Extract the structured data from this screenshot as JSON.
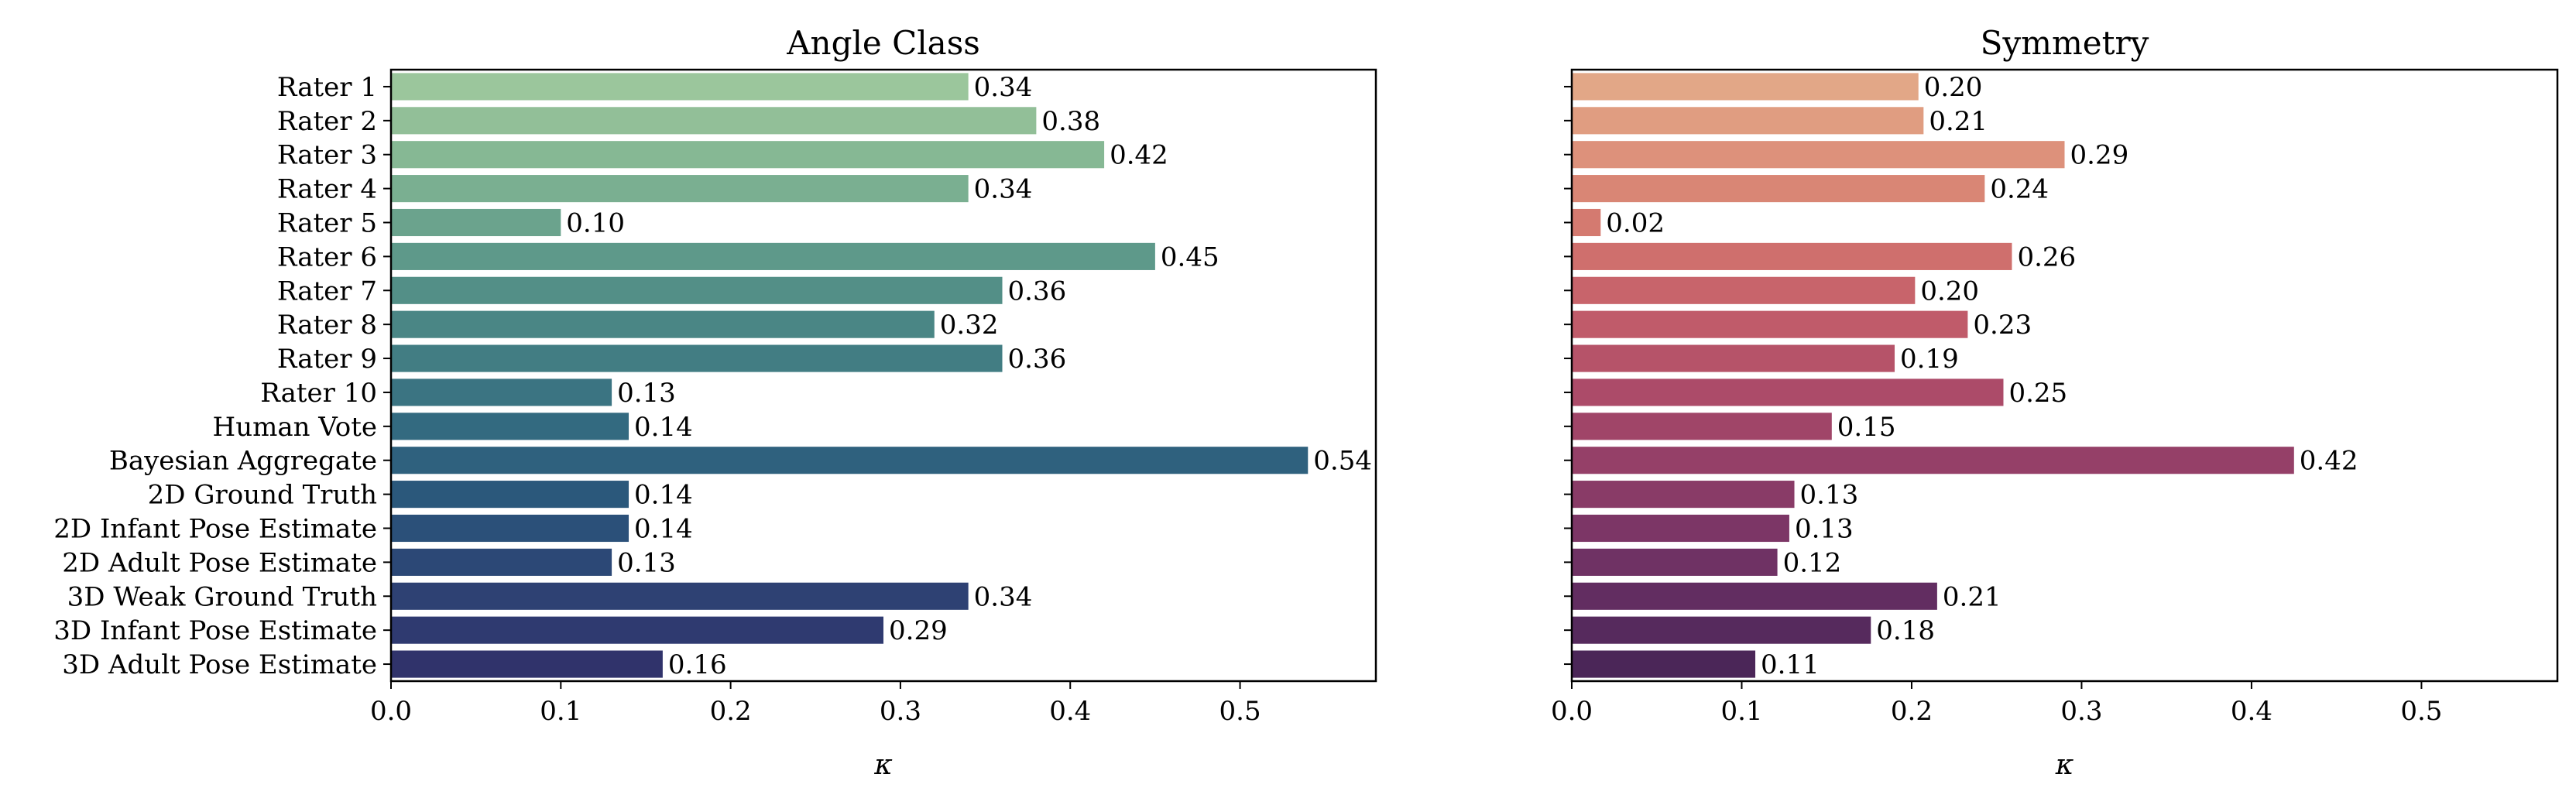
{
  "chart_data": [
    {
      "type": "bar",
      "orientation": "horizontal",
      "title": "Angle Class",
      "xlabel": "κ",
      "ylabel": "",
      "xlim": [
        0.0,
        0.58
      ],
      "xticks": [
        "0.0",
        "0.1",
        "0.2",
        "0.3",
        "0.4",
        "0.5"
      ],
      "categories": [
        "Rater 1",
        "Rater 2",
        "Rater 3",
        "Rater 4",
        "Rater 5",
        "Rater 6",
        "Rater 7",
        "Rater 8",
        "Rater 9",
        "Rater 10",
        "Human Vote",
        "Bayesian Aggregate",
        "2D Ground Truth",
        "2D Infant Pose Estimate",
        "2D Adult Pose Estimate",
        "3D Weak Ground Truth",
        "3D Infant Pose Estimate",
        "3D Adult Pose Estimate"
      ],
      "values": [
        0.34,
        0.38,
        0.42,
        0.34,
        0.1,
        0.45,
        0.36,
        0.32,
        0.36,
        0.13,
        0.14,
        0.54,
        0.14,
        0.14,
        0.13,
        0.34,
        0.29,
        0.16
      ],
      "value_labels": [
        "0.34",
        "0.38",
        "0.42",
        "0.34",
        "0.10",
        "0.45",
        "0.36",
        "0.32",
        "0.36",
        "0.13",
        "0.14",
        "0.54",
        "0.14",
        "0.14",
        "0.13",
        "0.34",
        "0.29",
        "0.16"
      ],
      "colors": [
        "#9bc69c",
        "#92bf98",
        "#86b894",
        "#7aaf91",
        "#6ba38d",
        "#5e998a",
        "#538f87",
        "#4a8685",
        "#427d83",
        "#3b7482",
        "#336a80",
        "#2f617e",
        "#2b587b",
        "#2b5079",
        "#2c4876",
        "#2e4173",
        "#2f3a70",
        "#30336b"
      ],
      "show_category_labels": true
    },
    {
      "type": "bar",
      "orientation": "horizontal",
      "title": "Symmetry",
      "xlabel": "κ",
      "ylabel": "",
      "xlim": [
        0.0,
        0.58
      ],
      "xticks": [
        "0.0",
        "0.1",
        "0.2",
        "0.3",
        "0.4",
        "0.5"
      ],
      "categories": [
        "Rater 1",
        "Rater 2",
        "Rater 3",
        "Rater 4",
        "Rater 5",
        "Rater 6",
        "Rater 7",
        "Rater 8",
        "Rater 9",
        "Rater 10",
        "Human Vote",
        "Bayesian Aggregate",
        "2D Ground Truth",
        "2D Infant Pose Estimate",
        "2D Adult Pose Estimate",
        "3D Weak Ground Truth",
        "3D Infant Pose Estimate",
        "3D Adult Pose Estimate"
      ],
      "values": [
        0.204,
        0.207,
        0.29,
        0.243,
        0.017,
        0.259,
        0.202,
        0.233,
        0.19,
        0.254,
        0.153,
        0.425,
        0.131,
        0.128,
        0.121,
        0.215,
        0.176,
        0.108
      ],
      "value_labels": [
        "0.20",
        "0.21",
        "0.29",
        "0.24",
        "0.02",
        "0.26",
        "0.20",
        "0.23",
        "0.19",
        "0.25",
        "0.15",
        "0.42",
        "0.13",
        "0.13",
        "0.12",
        "0.21",
        "0.18",
        "0.11"
      ],
      "colors": [
        "#e2a787",
        "#e09d81",
        "#dd917b",
        "#d98675",
        "#d47a70",
        "#cf6f6d",
        "#c8646b",
        "#c05b6a",
        "#b65369",
        "#ac4b69",
        "#a04568",
        "#954068",
        "#893b67",
        "#7c3666",
        "#6f3264",
        "#622d61",
        "#562a5d",
        "#4b2658"
      ],
      "show_category_labels": false
    }
  ]
}
